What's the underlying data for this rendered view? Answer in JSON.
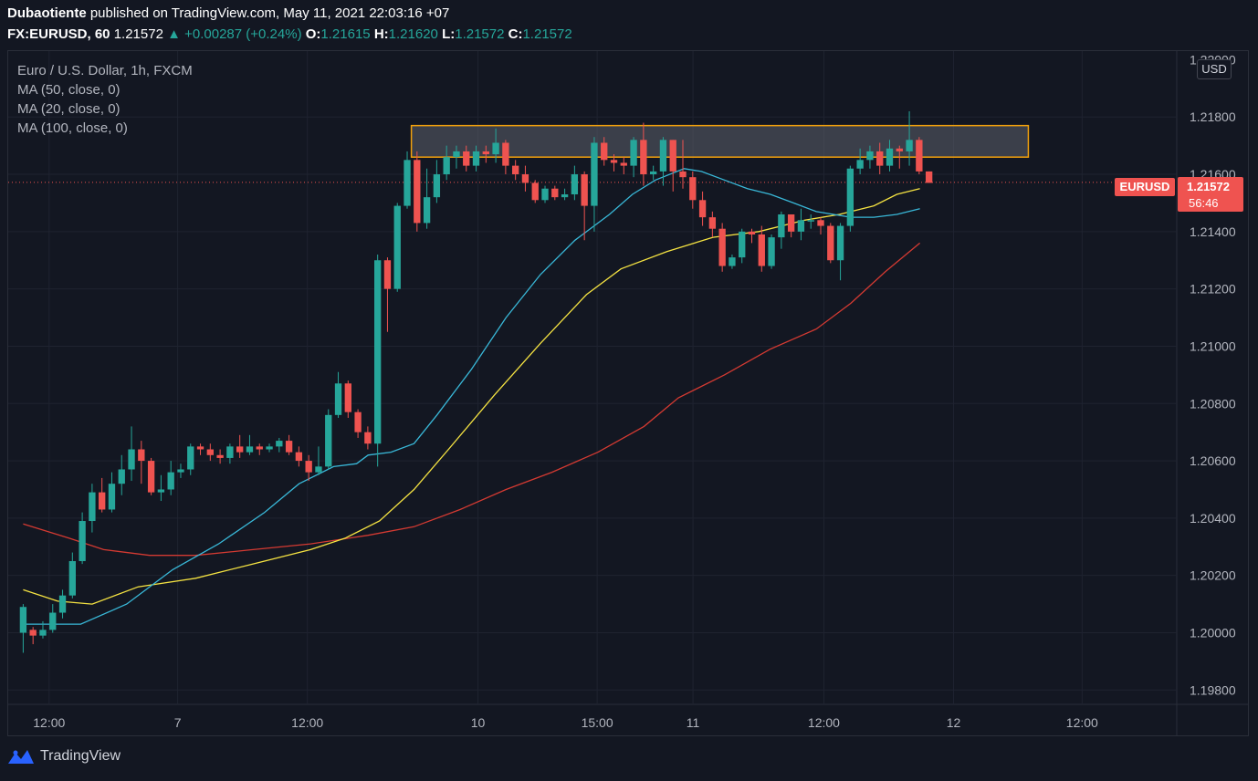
{
  "header": {
    "author": "Dubaotiente",
    "published_text": "published on TradingView.com, May 11, 2021 22:03:16 +07",
    "symbol": "FX:EURUSD, 60",
    "last": "1.21572",
    "change": "+0.00287 (+0.24%)",
    "o_label": "O:",
    "o": "1.21615",
    "h_label": "H:",
    "h": "1.21620",
    "l_label": "L:",
    "l": "1.21572",
    "c_label": "C:",
    "c": "1.21572"
  },
  "legend": {
    "title": "Euro / U.S. Dollar, 1h, FXCM",
    "ma1": "MA (50, close, 0)",
    "ma2": "MA (20, close, 0)",
    "ma3": "MA (100, close, 0)"
  },
  "price_scale": {
    "currency": "USD",
    "symbol_badge": "EURUSD",
    "current_price": "1.21572",
    "countdown": "56:46"
  },
  "footer": {
    "brand": "TradingView"
  },
  "colors": {
    "up": "#26a69a",
    "down": "#ef5350",
    "ma50": "#f5e342",
    "ma20": "#39b8d8",
    "ma100": "#d43a32",
    "zone_border": "#f2a10c",
    "zone_fill": "#5d606b"
  },
  "chart_data": {
    "type": "candlestick",
    "y_ticks": [
      "1.21800",
      "1.21600",
      "1.21400",
      "1.21200",
      "1.21000",
      "1.20800",
      "1.20600",
      "1.20400",
      "1.20200",
      "1.20000",
      "1.19800"
    ],
    "top_partial_tick": "1.22000",
    "x_ticks": [
      {
        "label": "12:00",
        "pos": 0.035
      },
      {
        "label": "7",
        "pos": 0.145
      },
      {
        "label": "12:00",
        "pos": 0.256
      },
      {
        "label": "10",
        "pos": 0.402
      },
      {
        "label": "15:00",
        "pos": 0.504
      },
      {
        "label": "11",
        "pos": 0.586
      },
      {
        "label": "12:00",
        "pos": 0.698
      },
      {
        "label": "12",
        "pos": 0.809
      },
      {
        "label": "12:00",
        "pos": 0.919
      }
    ],
    "ylim": [
      1.1975,
      1.2203
    ],
    "resistance_zone": {
      "low": 1.2166,
      "high": 1.2177
    },
    "candles": [
      [
        1.2,
        1.2009,
        1.1993,
        1.201
      ],
      [
        1.2001,
        1.1999,
        1.1996,
        1.2002
      ],
      [
        1.1999,
        1.2001,
        1.1998,
        1.2004
      ],
      [
        1.2001,
        1.2007,
        1.2,
        1.201
      ],
      [
        1.2007,
        1.2013,
        1.2005,
        1.2015
      ],
      [
        1.2013,
        1.2025,
        1.2012,
        1.2028
      ],
      [
        1.2025,
        1.2039,
        1.2024,
        1.2042
      ],
      [
        1.2039,
        1.2049,
        1.2035,
        1.2052
      ],
      [
        1.2049,
        1.2043,
        1.2042,
        1.2054
      ],
      [
        1.2043,
        1.2052,
        1.2042,
        1.2056
      ],
      [
        1.2052,
        1.2057,
        1.2048,
        1.2062
      ],
      [
        1.2057,
        1.2064,
        1.2053,
        1.2072
      ],
      [
        1.2064,
        1.206,
        1.2052,
        1.2067
      ],
      [
        1.206,
        1.2049,
        1.2048,
        1.2061
      ],
      [
        1.2049,
        1.205,
        1.2046,
        1.2055
      ],
      [
        1.205,
        1.2056,
        1.2048,
        1.206
      ],
      [
        1.2056,
        1.2057,
        1.2054,
        1.2059
      ],
      [
        1.2057,
        1.2065,
        1.2055,
        1.2066
      ],
      [
        1.2065,
        1.2064,
        1.2062,
        1.2066
      ],
      [
        1.2064,
        1.2062,
        1.206,
        1.2066
      ],
      [
        1.2062,
        1.2061,
        1.2059,
        1.2064
      ],
      [
        1.2061,
        1.2065,
        1.2059,
        1.2066
      ],
      [
        1.2065,
        1.2063,
        1.2061,
        1.2069
      ],
      [
        1.2063,
        1.2065,
        1.2062,
        1.2069
      ],
      [
        1.2065,
        1.2064,
        1.2062,
        1.2066
      ],
      [
        1.2064,
        1.2065,
        1.2063,
        1.2066
      ],
      [
        1.2065,
        1.2067,
        1.2063,
        1.2068
      ],
      [
        1.2067,
        1.2063,
        1.2062,
        1.2069
      ],
      [
        1.2063,
        1.206,
        1.2058,
        1.2065
      ],
      [
        1.206,
        1.2056,
        1.2053,
        1.2062
      ],
      [
        1.2056,
        1.2058,
        1.2055,
        1.2065
      ],
      [
        1.2058,
        1.2076,
        1.2057,
        1.2078
      ],
      [
        1.2076,
        1.2087,
        1.2075,
        1.2091
      ],
      [
        1.2087,
        1.2077,
        1.2075,
        1.2088
      ],
      [
        1.2077,
        1.207,
        1.2068,
        1.2078
      ],
      [
        1.207,
        1.2066,
        1.2064,
        1.2072
      ],
      [
        1.2066,
        1.213,
        1.2058,
        1.2132
      ],
      [
        1.213,
        1.212,
        1.2105,
        1.2131
      ],
      [
        1.212,
        1.2149,
        1.2119,
        1.215
      ],
      [
        1.2149,
        1.2165,
        1.2148,
        1.2168
      ],
      [
        1.2165,
        1.2143,
        1.214,
        1.2168
      ],
      [
        1.2143,
        1.2152,
        1.2141,
        1.2162
      ],
      [
        1.2152,
        1.216,
        1.215,
        1.2165
      ],
      [
        1.216,
        1.2166,
        1.2158,
        1.217
      ],
      [
        1.2166,
        1.2168,
        1.2162,
        1.217
      ],
      [
        1.2168,
        1.2163,
        1.2161,
        1.217
      ],
      [
        1.2163,
        1.2168,
        1.2161,
        1.217
      ],
      [
        1.2168,
        1.2167,
        1.2164,
        1.217
      ],
      [
        1.2167,
        1.2171,
        1.2164,
        1.2176
      ],
      [
        1.2171,
        1.2163,
        1.216,
        1.2172
      ],
      [
        1.2163,
        1.216,
        1.2158,
        1.2165
      ],
      [
        1.216,
        1.2157,
        1.2154,
        1.2163
      ],
      [
        1.2157,
        1.2151,
        1.215,
        1.2158
      ],
      [
        1.2151,
        1.2155,
        1.215,
        1.2156
      ],
      [
        1.2155,
        1.2152,
        1.2151,
        1.2156
      ],
      [
        1.2152,
        1.2153,
        1.2151,
        1.2155
      ],
      [
        1.2153,
        1.216,
        1.2151,
        1.2163
      ],
      [
        1.216,
        1.2149,
        1.2137,
        1.2161
      ],
      [
        1.2149,
        1.2171,
        1.214,
        1.2173
      ],
      [
        1.2171,
        1.2165,
        1.2163,
        1.2173
      ],
      [
        1.2165,
        1.2164,
        1.2161,
        1.2167
      ],
      [
        1.2164,
        1.2163,
        1.216,
        1.2166
      ],
      [
        1.2163,
        1.2172,
        1.2159,
        1.2173
      ],
      [
        1.2172,
        1.216,
        1.2156,
        1.2178
      ],
      [
        1.216,
        1.2161,
        1.2158,
        1.2163
      ],
      [
        1.2161,
        1.2172,
        1.2156,
        1.2173
      ],
      [
        1.2172,
        1.2161,
        1.2154,
        1.2172
      ],
      [
        1.2161,
        1.2159,
        1.2155,
        1.2172
      ],
      [
        1.2159,
        1.2151,
        1.2148,
        1.2161
      ],
      [
        1.2151,
        1.2145,
        1.2142,
        1.2154
      ],
      [
        1.2145,
        1.2141,
        1.2138,
        1.2147
      ],
      [
        1.2141,
        1.2128,
        1.2126,
        1.2143
      ],
      [
        1.2128,
        1.2131,
        1.2127,
        1.2132
      ],
      [
        1.2131,
        1.214,
        1.2129,
        1.2141
      ],
      [
        1.214,
        1.2139,
        1.2136,
        1.2141
      ],
      [
        1.2139,
        1.2128,
        1.2126,
        1.2142
      ],
      [
        1.2128,
        1.2138,
        1.2127,
        1.2139
      ],
      [
        1.2138,
        1.2146,
        1.2134,
        1.2147
      ],
      [
        1.2146,
        1.214,
        1.2138,
        1.2146
      ],
      [
        1.214,
        1.2144,
        1.2137,
        1.2148
      ],
      [
        1.2144,
        1.2144,
        1.2141,
        1.2146
      ],
      [
        1.2144,
        1.2142,
        1.2139,
        1.2145
      ],
      [
        1.2142,
        1.213,
        1.2129,
        1.2143
      ],
      [
        1.213,
        1.2142,
        1.2123,
        1.2143
      ],
      [
        1.2142,
        1.2162,
        1.214,
        1.2163
      ],
      [
        1.2162,
        1.2165,
        1.216,
        1.2169
      ],
      [
        1.2165,
        1.2168,
        1.2162,
        1.217
      ],
      [
        1.2168,
        1.2163,
        1.216,
        1.2171
      ],
      [
        1.2163,
        1.2169,
        1.2161,
        1.2172
      ],
      [
        1.2169,
        1.2168,
        1.2162,
        1.217
      ],
      [
        1.2168,
        1.2172,
        1.2163,
        1.2182
      ],
      [
        1.2172,
        1.2161,
        1.216,
        1.2173
      ],
      [
        1.2161,
        1.2157,
        1.2157,
        1.2161
      ]
    ],
    "ma20": [
      [
        0,
        1.2003
      ],
      [
        0.05,
        1.2003
      ],
      [
        0.09,
        1.201
      ],
      [
        0.13,
        1.2022
      ],
      [
        0.17,
        1.2031
      ],
      [
        0.21,
        1.2042
      ],
      [
        0.24,
        1.2052
      ],
      [
        0.27,
        1.2058
      ],
      [
        0.29,
        1.2059
      ],
      [
        0.3,
        1.2062
      ],
      [
        0.32,
        1.2063
      ],
      [
        0.34,
        1.2066
      ],
      [
        0.36,
        1.2076
      ],
      [
        0.39,
        1.2092
      ],
      [
        0.42,
        1.211
      ],
      [
        0.45,
        1.2125
      ],
      [
        0.48,
        1.2137
      ],
      [
        0.51,
        1.2146
      ],
      [
        0.53,
        1.2153
      ],
      [
        0.55,
        1.2158
      ],
      [
        0.575,
        1.2162
      ],
      [
        0.59,
        1.2161
      ],
      [
        0.61,
        1.2158
      ],
      [
        0.63,
        1.2155
      ],
      [
        0.65,
        1.2153
      ],
      [
        0.67,
        1.215
      ],
      [
        0.69,
        1.2147
      ],
      [
        0.72,
        1.2145
      ],
      [
        0.74,
        1.2145
      ],
      [
        0.76,
        1.2146
      ],
      [
        0.78,
        1.2148
      ]
    ],
    "ma50": [
      [
        0,
        1.2015
      ],
      [
        0.03,
        1.2011
      ],
      [
        0.06,
        1.201
      ],
      [
        0.1,
        1.2016
      ],
      [
        0.15,
        1.2019
      ],
      [
        0.2,
        1.2024
      ],
      [
        0.25,
        1.2029
      ],
      [
        0.28,
        1.2033
      ],
      [
        0.31,
        1.2039
      ],
      [
        0.34,
        1.205
      ],
      [
        0.37,
        1.2064
      ],
      [
        0.41,
        1.2083
      ],
      [
        0.45,
        1.2101
      ],
      [
        0.49,
        1.2118
      ],
      [
        0.52,
        1.2127
      ],
      [
        0.56,
        1.2133
      ],
      [
        0.6,
        1.2138
      ],
      [
        0.64,
        1.214
      ],
      [
        0.68,
        1.2144
      ],
      [
        0.71,
        1.2146
      ],
      [
        0.74,
        1.2149
      ],
      [
        0.76,
        1.2153
      ],
      [
        0.77,
        1.2154
      ],
      [
        0.78,
        1.2155
      ]
    ],
    "ma100": [
      [
        0,
        1.2038
      ],
      [
        0.04,
        1.2033
      ],
      [
        0.07,
        1.2029
      ],
      [
        0.11,
        1.2027
      ],
      [
        0.15,
        1.2027
      ],
      [
        0.2,
        1.2029
      ],
      [
        0.25,
        1.2031
      ],
      [
        0.3,
        1.2034
      ],
      [
        0.34,
        1.2037
      ],
      [
        0.38,
        1.2043
      ],
      [
        0.42,
        1.205
      ],
      [
        0.46,
        1.2056
      ],
      [
        0.5,
        1.2063
      ],
      [
        0.54,
        1.2072
      ],
      [
        0.57,
        1.2082
      ],
      [
        0.61,
        1.209
      ],
      [
        0.65,
        1.2099
      ],
      [
        0.69,
        1.2106
      ],
      [
        0.72,
        1.2115
      ],
      [
        0.75,
        1.2126
      ],
      [
        0.78,
        1.2136
      ]
    ],
    "current_price": 1.21572,
    "x_range_fraction": [
      0.005,
      0.788
    ]
  }
}
